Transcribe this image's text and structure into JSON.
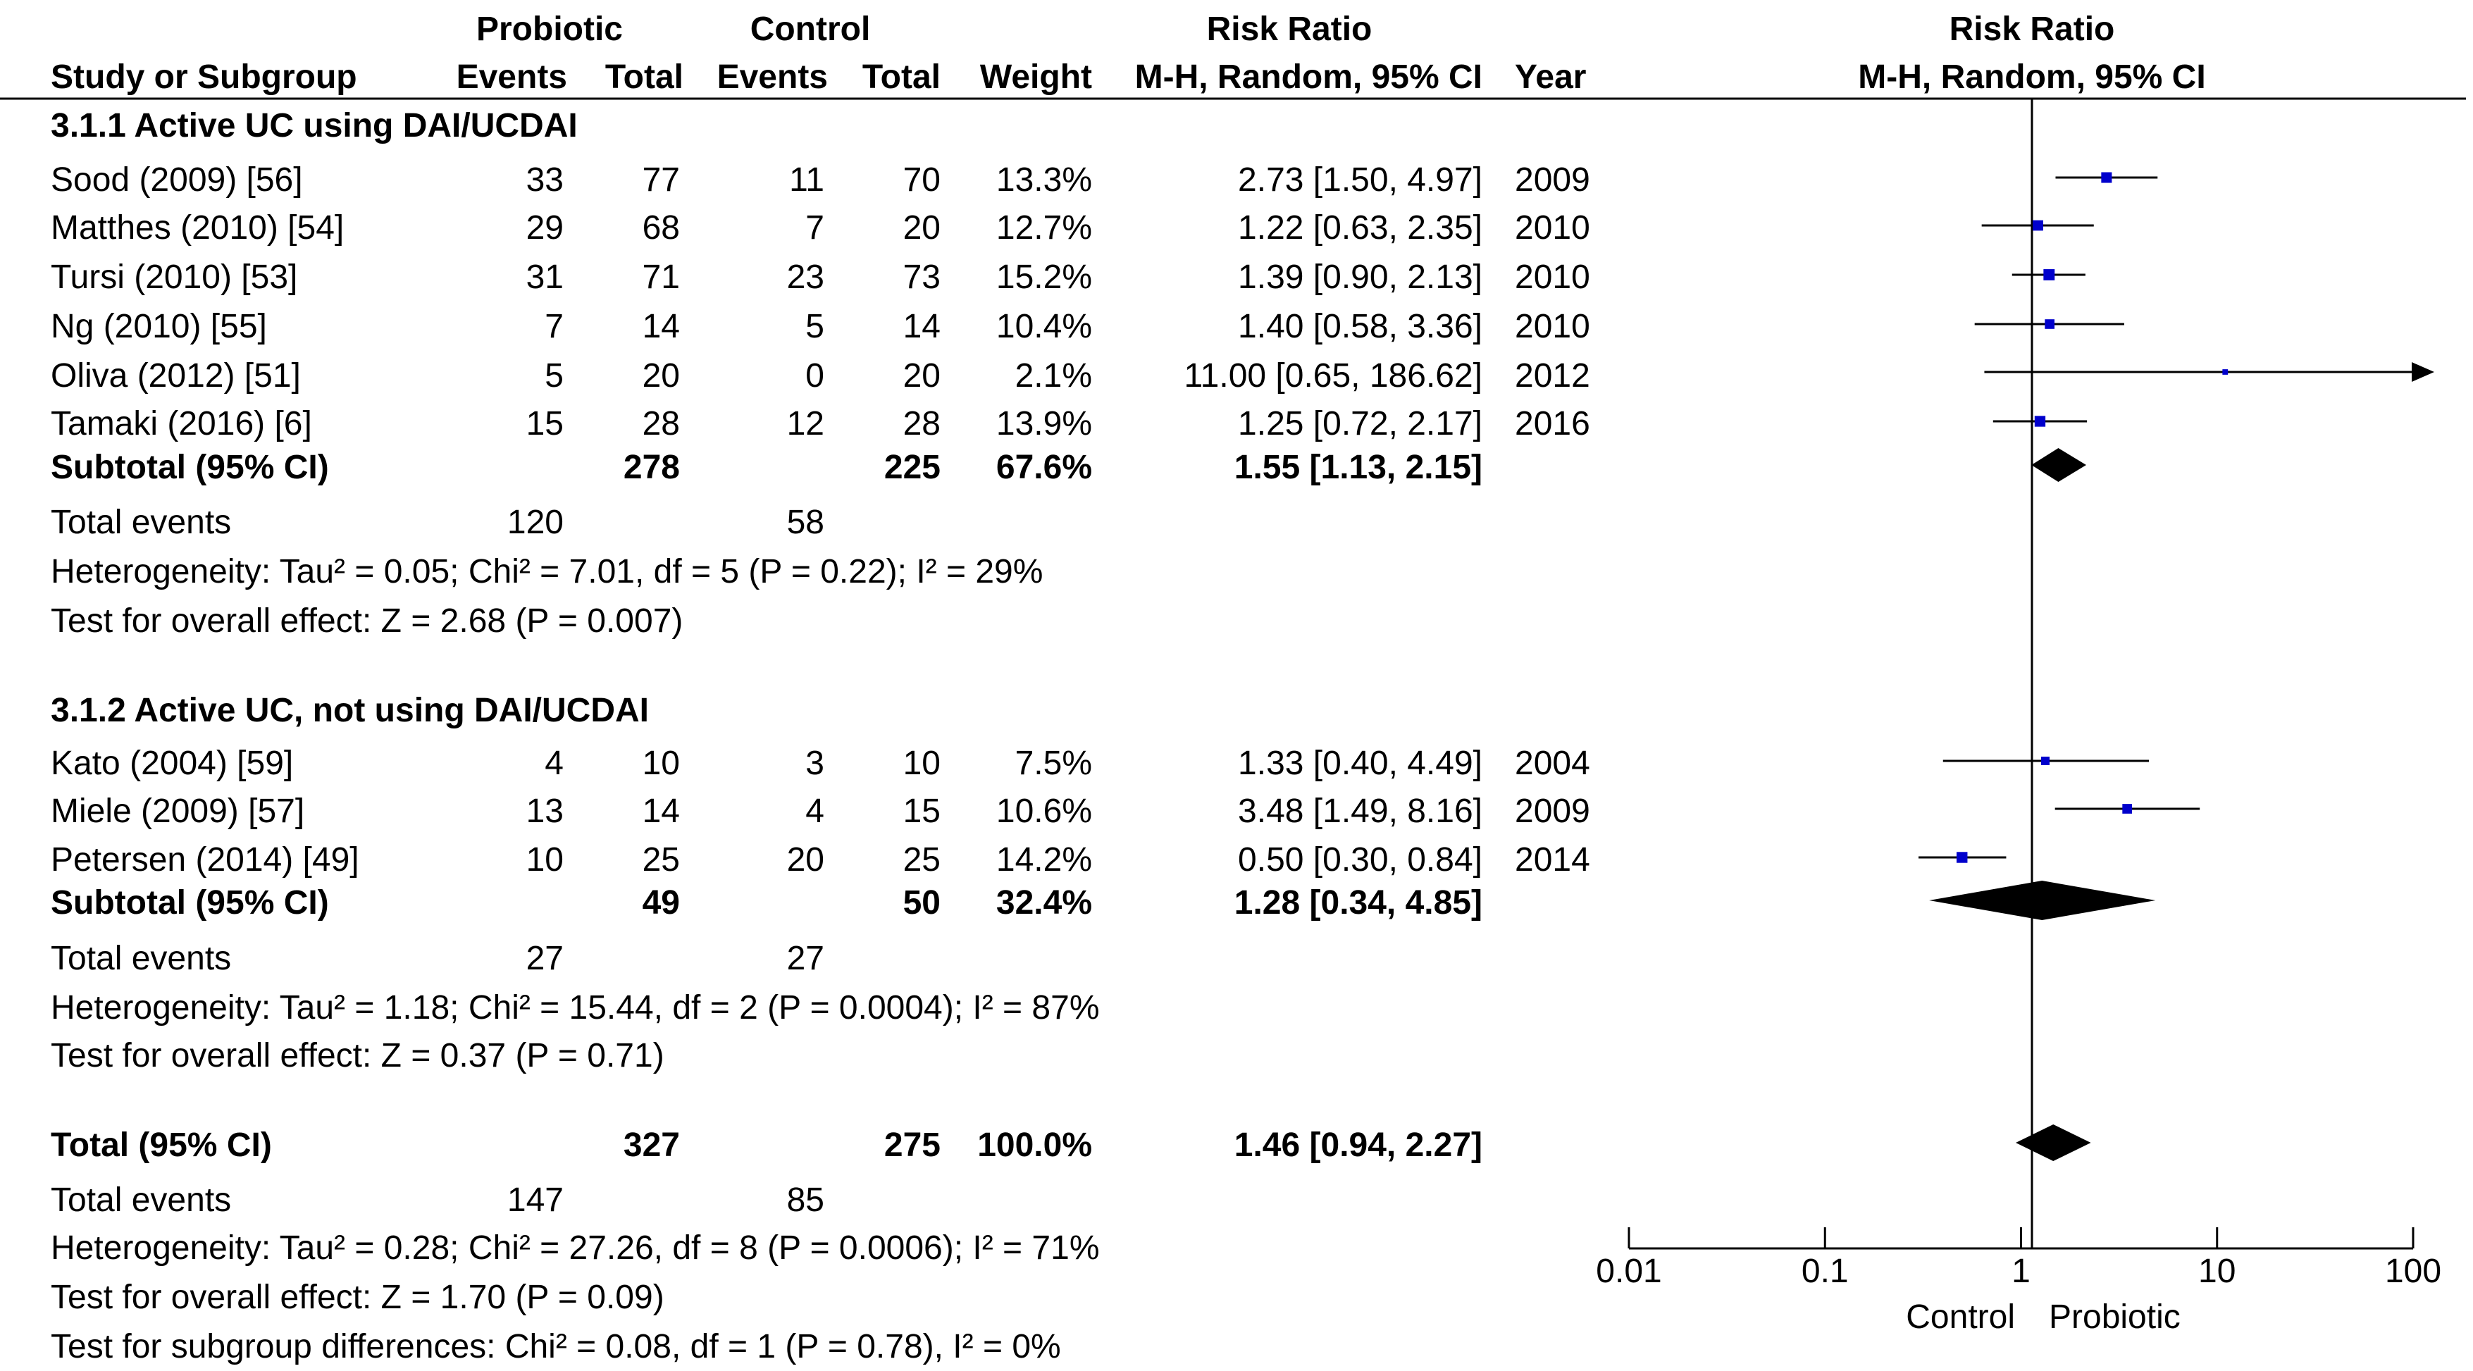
{
  "header": {
    "group1": "Probiotic",
    "group2": "Control",
    "effect_header": "Risk Ratio",
    "plot_header": "Risk Ratio",
    "plot_subheader": "M-H, Random, 95% CI",
    "col_study": "Study or Subgroup",
    "col_events1": "Events",
    "col_total1": "Total",
    "col_events2": "Events",
    "col_total2": "Total",
    "col_weight": "Weight",
    "col_ci": "M-H, Random, 95% CI",
    "col_year": "Year"
  },
  "subgroups": [
    {
      "title": "3.1.1 Active UC using DAI/UCDAI",
      "studies": [
        {
          "name": "Sood (2009) [56]",
          "e1": "33",
          "t1": "77",
          "e2": "11",
          "t2": "70",
          "weight": "13.3%",
          "ci": "2.73 [1.50, 4.97]",
          "year": "2009"
        },
        {
          "name": "Matthes (2010) [54]",
          "e1": "29",
          "t1": "68",
          "e2": "7",
          "t2": "20",
          "weight": "12.7%",
          "ci": "1.22 [0.63, 2.35]",
          "year": "2010"
        },
        {
          "name": "Tursi (2010) [53]",
          "e1": "31",
          "t1": "71",
          "e2": "23",
          "t2": "73",
          "weight": "15.2%",
          "ci": "1.39 [0.90, 2.13]",
          "year": "2010"
        },
        {
          "name": "Ng (2010) [55]",
          "e1": "7",
          "t1": "14",
          "e2": "5",
          "t2": "14",
          "weight": "10.4%",
          "ci": "1.40 [0.58, 3.36]",
          "year": "2010"
        },
        {
          "name": "Oliva (2012) [51]",
          "e1": "5",
          "t1": "20",
          "e2": "0",
          "t2": "20",
          "weight": "2.1%",
          "ci": "11.00 [0.65, 186.62]",
          "year": "2012"
        },
        {
          "name": "Tamaki (2016) [6]",
          "e1": "15",
          "t1": "28",
          "e2": "12",
          "t2": "28",
          "weight": "13.9%",
          "ci": "1.25 [0.72, 2.17]",
          "year": "2016"
        }
      ],
      "subtotal": {
        "label": "Subtotal (95% CI)",
        "t1": "278",
        "t2": "225",
        "weight": "67.6%",
        "ci": "1.55 [1.13, 2.15]"
      },
      "total_events": {
        "label": "Total events",
        "e1": "120",
        "e2": "58"
      },
      "heterogeneity": "Heterogeneity: Tau² = 0.05; Chi² = 7.01, df = 5 (P = 0.22); I² = 29%",
      "overall": "Test for overall effect: Z = 2.68 (P = 0.007)"
    },
    {
      "title": "3.1.2 Active UC, not using DAI/UCDAI",
      "studies": [
        {
          "name": "Kato (2004) [59]",
          "e1": "4",
          "t1": "10",
          "e2": "3",
          "t2": "10",
          "weight": "7.5%",
          "ci": "1.33 [0.40, 4.49]",
          "year": "2004"
        },
        {
          "name": "Miele (2009) [57]",
          "e1": "13",
          "t1": "14",
          "e2": "4",
          "t2": "15",
          "weight": "10.6%",
          "ci": "3.48 [1.49, 8.16]",
          "year": "2009"
        },
        {
          "name": "Petersen (2014) [49]",
          "e1": "10",
          "t1": "25",
          "e2": "20",
          "t2": "25",
          "weight": "14.2%",
          "ci": "0.50 [0.30, 0.84]",
          "year": "2014"
        }
      ],
      "subtotal": {
        "label": "Subtotal (95% CI)",
        "t1": "49",
        "t2": "50",
        "weight": "32.4%",
        "ci": "1.28 [0.34, 4.85]"
      },
      "total_events": {
        "label": "Total events",
        "e1": "27",
        "e2": "27"
      },
      "heterogeneity": "Heterogeneity: Tau² = 1.18; Chi² = 15.44, df = 2 (P = 0.0004); I² = 87%",
      "overall": "Test for overall effect: Z = 0.37 (P = 0.71)"
    }
  ],
  "total": {
    "label": "Total (95% CI)",
    "t1": "327",
    "t2": "275",
    "weight": "100.0%",
    "ci": "1.46 [0.94, 2.27]",
    "events_label": "Total events",
    "e1": "147",
    "e2": "85",
    "heterogeneity": "Heterogeneity: Tau² = 0.28; Chi² = 27.26, df = 8 (P = 0.0006); I² = 71%",
    "overall": "Test for overall effect: Z = 1.70 (P = 0.09)",
    "subgroup_test": "Test for subgroup differences: Chi² = 0.08, df = 1 (P = 0.78), I² = 0%"
  },
  "axis": {
    "favours_left": "Control",
    "favours_right": "Probiotic"
  },
  "colors": {
    "marker": "#0000cc",
    "line": "#000000"
  },
  "chart_data": {
    "type": "forest",
    "scale": "log",
    "xlim": [
      0.01,
      100
    ],
    "xticks": [
      0.01,
      0.1,
      1,
      10,
      100
    ],
    "xtick_labels": [
      "0.01",
      "0.1",
      "1",
      "10",
      "100"
    ],
    "reference_line": 1,
    "studies": [
      {
        "name": "Sood (2009) [56]",
        "rr": 2.73,
        "lo": 1.5,
        "hi": 4.97,
        "weight": 13.3
      },
      {
        "name": "Matthes (2010) [54]",
        "rr": 1.22,
        "lo": 0.63,
        "hi": 2.35,
        "weight": 12.7
      },
      {
        "name": "Tursi (2010) [53]",
        "rr": 1.39,
        "lo": 0.9,
        "hi": 2.13,
        "weight": 15.2
      },
      {
        "name": "Ng (2010) [55]",
        "rr": 1.4,
        "lo": 0.58,
        "hi": 3.36,
        "weight": 10.4
      },
      {
        "name": "Oliva (2012) [51]",
        "rr": 11.0,
        "lo": 0.65,
        "hi": 186.62,
        "weight": 2.1
      },
      {
        "name": "Tamaki (2016) [6]",
        "rr": 1.25,
        "lo": 0.72,
        "hi": 2.17,
        "weight": 13.9
      },
      {
        "name": "Kato (2004) [59]",
        "rr": 1.33,
        "lo": 0.4,
        "hi": 4.49,
        "weight": 7.5
      },
      {
        "name": "Miele (2009) [57]",
        "rr": 3.48,
        "lo": 1.49,
        "hi": 8.16,
        "weight": 10.6
      },
      {
        "name": "Petersen (2014) [49]",
        "rr": 0.5,
        "lo": 0.3,
        "hi": 0.84,
        "weight": 14.2
      }
    ],
    "pooled": [
      {
        "name": "Subtotal 3.1.1",
        "rr": 1.55,
        "lo": 1.13,
        "hi": 2.15
      },
      {
        "name": "Subtotal 3.1.2",
        "rr": 1.28,
        "lo": 0.34,
        "hi": 4.85
      },
      {
        "name": "Total",
        "rr": 1.46,
        "lo": 0.94,
        "hi": 2.27
      }
    ]
  }
}
